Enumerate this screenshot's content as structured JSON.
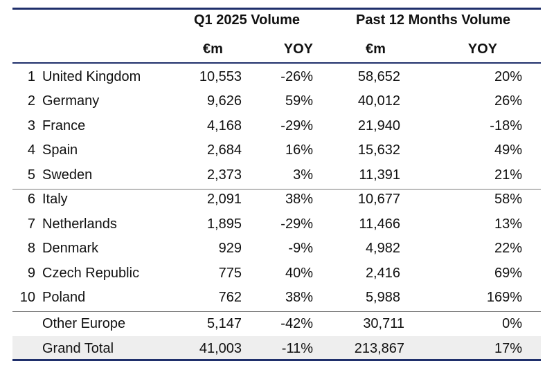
{
  "header": {
    "group_q1": "Q1 2025  Volume",
    "group_p12m": "Past 12 Months Volume",
    "col_eur_q1": "€m",
    "col_yoy_q1": "YOY",
    "col_eur_p12m": "€m",
    "col_yoy_p12m": "YOY"
  },
  "rows": [
    {
      "rank": "1",
      "country": "United Kingdom",
      "q1": "10,553",
      "q1_yoy": "-26%",
      "p12m": "58,652",
      "p12m_yoy": "20%"
    },
    {
      "rank": "2",
      "country": "Germany",
      "q1": "9,626",
      "q1_yoy": "59%",
      "p12m": "40,012",
      "p12m_yoy": "26%"
    },
    {
      "rank": "3",
      "country": "France",
      "q1": "4,168",
      "q1_yoy": "-29%",
      "p12m": "21,940",
      "p12m_yoy": "-18%"
    },
    {
      "rank": "4",
      "country": "Spain",
      "q1": "2,684",
      "q1_yoy": "16%",
      "p12m": "15,632",
      "p12m_yoy": "49%"
    },
    {
      "rank": "5",
      "country": "Sweden",
      "q1": "2,373",
      "q1_yoy": "3%",
      "p12m": "11,391",
      "p12m_yoy": "21%"
    },
    {
      "rank": "6",
      "country": "Italy",
      "q1": "2,091",
      "q1_yoy": "38%",
      "p12m": "10,677",
      "p12m_yoy": "58%"
    },
    {
      "rank": "7",
      "country": "Netherlands",
      "q1": "1,895",
      "q1_yoy": "-29%",
      "p12m": "11,466",
      "p12m_yoy": "13%"
    },
    {
      "rank": "8",
      "country": "Denmark",
      "q1": "929",
      "q1_yoy": "-9%",
      "p12m": "4,982",
      "p12m_yoy": "22%"
    },
    {
      "rank": "9",
      "country": "Czech Republic",
      "q1": "775",
      "q1_yoy": "40%",
      "p12m": "2,416",
      "p12m_yoy": "69%"
    },
    {
      "rank": "10",
      "country": "Poland",
      "q1": "762",
      "q1_yoy": "38%",
      "p12m": "5,988",
      "p12m_yoy": "169%"
    }
  ],
  "other": {
    "country": "Other Europe",
    "q1": "5,147",
    "q1_yoy": "-42%",
    "p12m": "30,711",
    "p12m_yoy": "0%"
  },
  "total": {
    "country": "Grand Total",
    "q1": "41,003",
    "q1_yoy": "-11%",
    "p12m": "213,867",
    "p12m_yoy": "17%"
  },
  "colors": {
    "rule": "#1f2f6b",
    "total_bg": "#eeeeee"
  }
}
